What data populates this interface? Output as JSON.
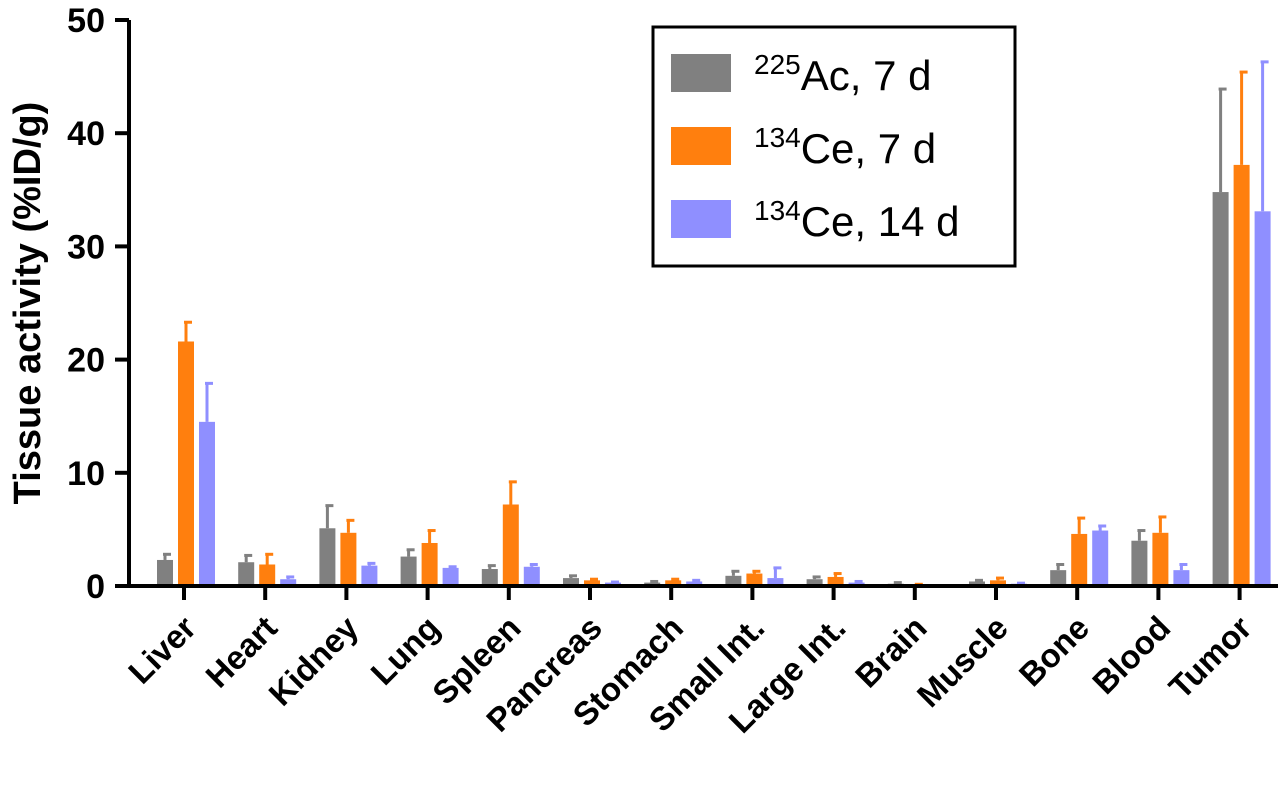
{
  "chart_data": {
    "type": "bar",
    "ylabel": "Tissue activity (%ID/g)",
    "xlabel": "",
    "ylim": [
      0,
      50
    ],
    "yticks": [
      "0",
      "10",
      "20",
      "30",
      "40",
      "50"
    ],
    "yticks_values": [
      0,
      10,
      20,
      30,
      40,
      50
    ],
    "grid": false,
    "legend_position": "top-right",
    "categories": [
      "Liver",
      "Heart",
      "Kidney",
      "Lung",
      "Spleen",
      "Pancreas",
      "Stomach",
      "Small Int.",
      "Large Int.",
      "Brain",
      "Muscle",
      "Bone",
      "Blood",
      "Tumor"
    ],
    "series": [
      {
        "name": "225Ac, 7 d",
        "legend_sup": "225",
        "legend_rest": "Ac, 7 d",
        "color": "#808080",
        "values": [
          2.3,
          2.1,
          5.1,
          2.6,
          1.5,
          0.7,
          0.3,
          0.9,
          0.6,
          0.2,
          0.4,
          1.4,
          4.0,
          34.8
        ],
        "errors": [
          0.5,
          0.6,
          2.0,
          0.6,
          0.3,
          0.2,
          0.1,
          0.4,
          0.2,
          0.1,
          0.1,
          0.5,
          0.9,
          9.1
        ]
      },
      {
        "name": "134Ce, 7 d",
        "legend_sup": "134",
        "legend_rest": "Ce, 7 d",
        "color": "#ff7f0e",
        "values": [
          21.6,
          1.9,
          4.7,
          3.8,
          7.2,
          0.5,
          0.5,
          1.1,
          0.8,
          0.1,
          0.5,
          4.6,
          4.7,
          37.2
        ],
        "errors": [
          1.7,
          0.9,
          1.1,
          1.1,
          2.0,
          0.1,
          0.1,
          0.2,
          0.3,
          0.05,
          0.2,
          1.4,
          1.4,
          8.2
        ]
      },
      {
        "name": "134Ce, 14 d",
        "legend_sup": "134",
        "legend_rest": "Ce, 14 d",
        "color": "#8f8fff",
        "values": [
          14.5,
          0.6,
          1.8,
          1.6,
          1.7,
          0.3,
          0.4,
          0.7,
          0.3,
          0.0,
          0.2,
          4.9,
          1.4,
          33.1
        ],
        "errors": [
          3.4,
          0.2,
          0.2,
          0.1,
          0.2,
          0.05,
          0.1,
          0.9,
          0.1,
          0.0,
          0.05,
          0.4,
          0.5,
          13.2
        ]
      }
    ]
  }
}
